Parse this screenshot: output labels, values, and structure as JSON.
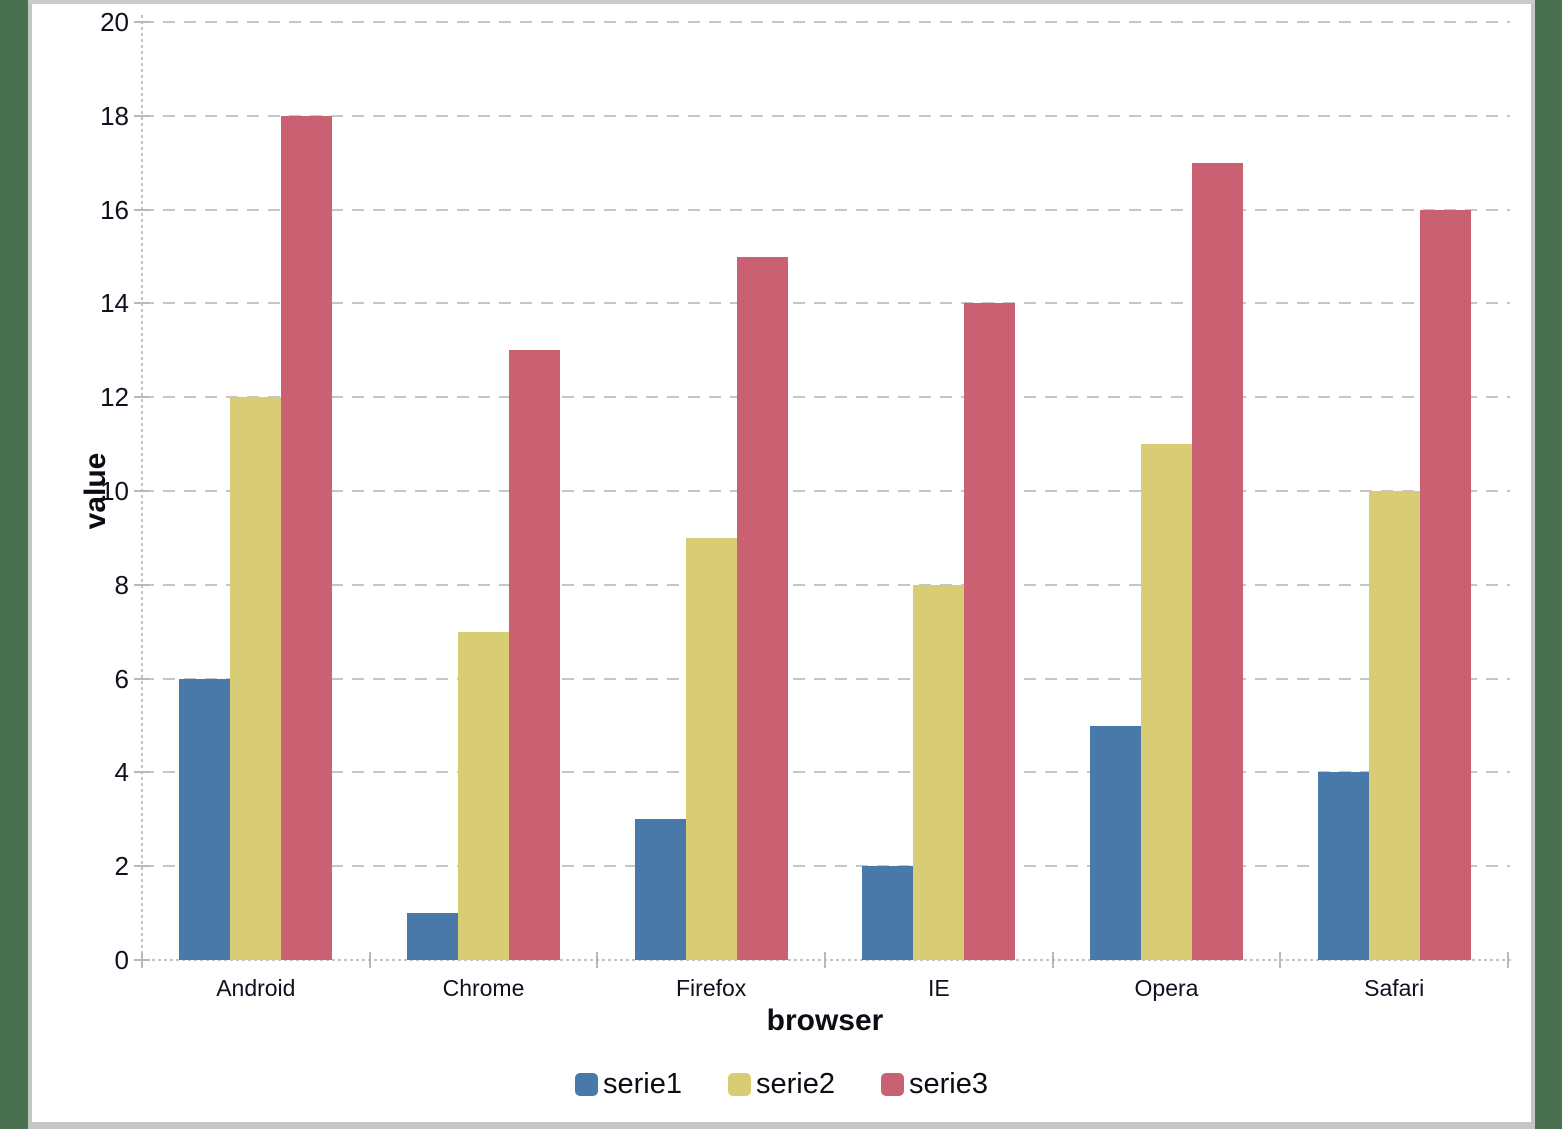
{
  "page": {
    "background_color": "#497150",
    "panel_border_color": "#c5c5c5",
    "panel_background": "#ffffff"
  },
  "chart_data": {
    "type": "bar",
    "title": "",
    "categories": [
      "Android",
      "Chrome",
      "Firefox",
      "IE",
      "Opera",
      "Safari"
    ],
    "series": [
      {
        "name": "serie1",
        "color": "#4979a8",
        "values": [
          6,
          1,
          3,
          2,
          5,
          4
        ]
      },
      {
        "name": "serie2",
        "color": "#d8cc74",
        "values": [
          12,
          7,
          9,
          8,
          11,
          10
        ]
      },
      {
        "name": "serie3",
        "color": "#ca6173",
        "values": [
          18,
          13,
          15,
          14,
          17,
          16
        ]
      }
    ],
    "xlabel": "browser",
    "ylabel": "value",
    "ylim": [
      0,
      20
    ],
    "ytick_step": 2,
    "y_ticks": [
      0,
      2,
      4,
      6,
      8,
      10,
      12,
      14,
      16,
      18,
      20
    ],
    "grid": "horizontal dashed",
    "gridline_color": "#c6c6c6",
    "axis_line_color": "#c3c3c3",
    "tick_label_color": "#10101e",
    "legend_position": "bottom",
    "legend_labels": [
      "serie1",
      "serie2",
      "serie3"
    ]
  }
}
